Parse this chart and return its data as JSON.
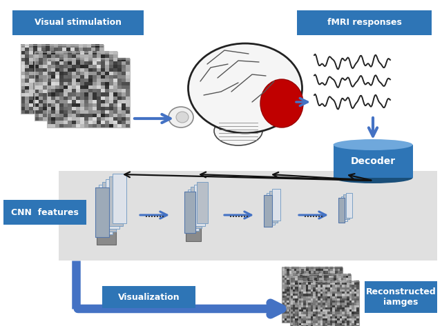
{
  "bg_color": "#ffffff",
  "blue_dark": "#1f4e79",
  "blue_mid": "#2e75b6",
  "blue_light": "#5b9bd5",
  "blue_arrow": "#4472c4",
  "blue_arrow2": "#2e75b6",
  "gray_band": "#e0e0e0",
  "gray_rect_dark": "#9a9a9a",
  "gray_rect_light": "#c8ccd4",
  "white": "#ffffff",
  "red_highlight": "#c00000",
  "labels": {
    "visual_stimulation": "Visual stimulation",
    "fmri_responses": "fMRI responses",
    "decoder": "Decoder",
    "cnn_features": "CNN  features",
    "visualization": "Visualization",
    "reconstructed": "Reconstructed\niamges"
  },
  "dots": ".......",
  "figsize": [
    6.4,
    4.73
  ],
  "dpi": 100
}
